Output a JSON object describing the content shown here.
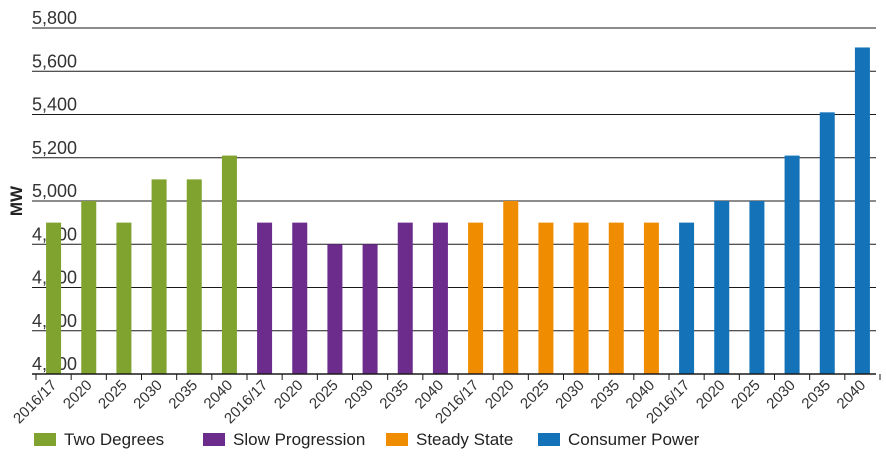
{
  "chart_data": {
    "type": "bar",
    "ylabel": "MW",
    "ylim": [
      4200,
      5800
    ],
    "yticks": [
      4200,
      4400,
      4600,
      4800,
      5000,
      5200,
      5400,
      5600,
      5800
    ],
    "ytick_labels": [
      "4,200",
      "4,400",
      "4,600",
      "4,800",
      "5,000",
      "5,200",
      "5,400",
      "5,600",
      "5,800"
    ],
    "grid": true,
    "legend_position": "bottom",
    "series": [
      {
        "name": "Two Degrees",
        "color": "#7fa32e",
        "categories": [
          "2016/17",
          "2020",
          "2025",
          "2030",
          "2035",
          "2040"
        ],
        "values": [
          4900,
          5000,
          4900,
          5100,
          5100,
          5210
        ]
      },
      {
        "name": "Slow Progression",
        "color": "#6b2c8c",
        "categories": [
          "2016/17",
          "2020",
          "2025",
          "2030",
          "2035",
          "2040"
        ],
        "values": [
          4900,
          4900,
          4800,
          4800,
          4900,
          4900
        ]
      },
      {
        "name": "Steady State",
        "color": "#f08c00",
        "categories": [
          "2016/17",
          "2020",
          "2025",
          "2030",
          "2035",
          "2040"
        ],
        "values": [
          4900,
          5000,
          4900,
          4900,
          4900,
          4900
        ]
      },
      {
        "name": "Consumer Power",
        "color": "#1473b8",
        "categories": [
          "2016/17",
          "2020",
          "2025",
          "2030",
          "2035",
          "2040"
        ],
        "values": [
          4900,
          5000,
          5000,
          5210,
          5410,
          5710
        ]
      }
    ]
  }
}
